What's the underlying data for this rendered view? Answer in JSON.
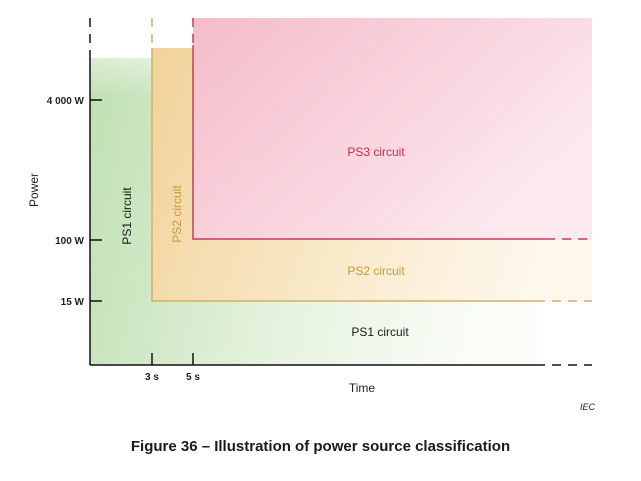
{
  "figure": {
    "caption": "Figure 36 – Illustration of power source classification",
    "source_mark": "IEC"
  },
  "axes": {
    "y_label": "Power",
    "x_label": "Time",
    "y_ticks": [
      "4 000 W",
      "100 W",
      "15 W"
    ],
    "x_ticks": [
      "3 s",
      "5 s"
    ]
  },
  "regions": {
    "ps3_label": "PS3 circuit",
    "ps2_label": "PS2 circuit",
    "ps1_label": "PS1 circuit",
    "ps2_vertical_label": "PS2 circuit",
    "ps1_vertical_label": "PS1 circuit"
  },
  "colors": {
    "ps1": "#bfe0b4",
    "ps2": "#f4dba6",
    "ps3": "#f6c6d2",
    "ps2_line": "#d4b060",
    "ps3_line": "#c2405a",
    "axis": "#111111",
    "ps1_text": "#1a1a1a",
    "ps2_text": "#c89a38",
    "ps3_text": "#c03050"
  }
}
